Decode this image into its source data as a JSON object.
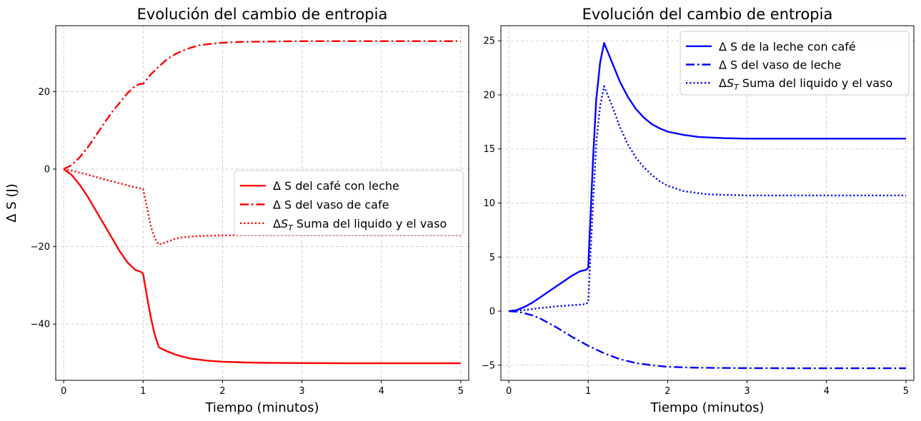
{
  "chart_data": [
    {
      "type": "line",
      "title": "Evolución del cambio de entropia",
      "xlabel": "Tiempo (minutos)",
      "ylabel": "Δ S (J)",
      "xlim": [
        -0.1,
        5.1
      ],
      "ylim": [
        -54.5,
        37.0
      ],
      "xticks": [
        0,
        1,
        2,
        3,
        4,
        5
      ],
      "yticks": [
        -40,
        -20,
        0,
        20
      ],
      "grid": true,
      "legend_position": "center-right",
      "color": "#ff0000",
      "series": [
        {
          "name": "Δ S del café con leche",
          "style": "solid",
          "x": [
            0,
            0.1,
            0.2,
            0.3,
            0.4,
            0.5,
            0.6,
            0.7,
            0.8,
            0.9,
            0.97,
            1.0,
            1.05,
            1.1,
            1.15,
            1.2,
            1.3,
            1.4,
            1.5,
            1.6,
            1.8,
            2.0,
            2.3,
            2.6,
            3.0,
            3.5,
            4.0,
            5.0
          ],
          "y": [
            0,
            -1.5,
            -4.0,
            -7.0,
            -10.5,
            -14.0,
            -17.5,
            -21.0,
            -24.0,
            -26.0,
            -26.5,
            -27.0,
            -33.0,
            -38.5,
            -43.0,
            -46.0,
            -47.0,
            -47.8,
            -48.4,
            -48.9,
            -49.4,
            -49.7,
            -49.9,
            -50.0,
            -50.05,
            -50.1,
            -50.1,
            -50.1
          ]
        },
        {
          "name": "Δ S del vaso de cafe",
          "style": "dashdot",
          "x": [
            0,
            0.1,
            0.2,
            0.3,
            0.4,
            0.5,
            0.6,
            0.7,
            0.8,
            0.9,
            0.97,
            1.0,
            1.1,
            1.2,
            1.3,
            1.4,
            1.5,
            1.6,
            1.7,
            1.8,
            2.0,
            2.2,
            2.5,
            3.0,
            3.5,
            4.0,
            5.0
          ],
          "y": [
            0,
            1.0,
            3.0,
            5.5,
            8.5,
            11.5,
            14.5,
            17.0,
            19.5,
            21.5,
            22.0,
            22.0,
            24.5,
            26.5,
            28.3,
            29.6,
            30.6,
            31.3,
            31.9,
            32.2,
            32.6,
            32.8,
            32.9,
            33.0,
            33.0,
            33.0,
            33.0
          ]
        },
        {
          "name": "ΔS_T  Suma del liquido y el vaso",
          "style": "dotted",
          "x": [
            0,
            0.1,
            0.2,
            0.3,
            0.4,
            0.5,
            0.6,
            0.7,
            0.8,
            0.9,
            0.97,
            1.0,
            1.05,
            1.1,
            1.15,
            1.2,
            1.3,
            1.4,
            1.5,
            1.6,
            1.8,
            2.0,
            2.5,
            3.0,
            4.0,
            5.0
          ],
          "y": [
            0,
            -0.4,
            -0.9,
            -1.4,
            -2.0,
            -2.6,
            -3.1,
            -3.6,
            -4.2,
            -4.7,
            -5.0,
            -5.1,
            -10.0,
            -15.0,
            -18.0,
            -19.5,
            -18.8,
            -18.0,
            -17.6,
            -17.4,
            -17.2,
            -17.1,
            -17.1,
            -17.1,
            -17.1,
            -17.1
          ]
        }
      ]
    },
    {
      "type": "line",
      "title": "Evolución del cambio de entropia",
      "xlabel": "Tiempo (minutos)",
      "ylabel": "",
      "xlim": [
        -0.1,
        5.1
      ],
      "ylim": [
        -6.4,
        26.4
      ],
      "xticks": [
        0,
        1,
        2,
        3,
        4,
        5
      ],
      "yticks": [
        -5,
        0,
        5,
        10,
        15,
        20,
        25
      ],
      "grid": true,
      "legend_position": "top-right",
      "color": "#0000ff",
      "series": [
        {
          "name": "Δ S de la leche con café",
          "style": "solid",
          "x": [
            0,
            0.1,
            0.2,
            0.3,
            0.4,
            0.5,
            0.6,
            0.7,
            0.8,
            0.9,
            0.97,
            1.0,
            1.03,
            1.06,
            1.1,
            1.15,
            1.2,
            1.3,
            1.4,
            1.5,
            1.6,
            1.7,
            1.8,
            1.9,
            2.0,
            2.2,
            2.4,
            2.7,
            3.0,
            3.5,
            4.0,
            5.0
          ],
          "y": [
            0,
            0.1,
            0.4,
            0.8,
            1.3,
            1.8,
            2.3,
            2.8,
            3.3,
            3.7,
            3.8,
            4.0,
            9.0,
            14.0,
            19.5,
            23.0,
            24.8,
            23.0,
            21.2,
            19.8,
            18.7,
            17.9,
            17.3,
            16.9,
            16.6,
            16.3,
            16.1,
            16.0,
            15.95,
            15.95,
            15.95,
            15.95
          ]
        },
        {
          "name": "Δ S del vaso de leche",
          "style": "dashdot",
          "x": [
            0,
            0.1,
            0.2,
            0.3,
            0.4,
            0.5,
            0.6,
            0.7,
            0.8,
            0.9,
            1.0,
            1.2,
            1.4,
            1.6,
            1.8,
            2.0,
            2.3,
            2.6,
            3.0,
            3.5,
            4.0,
            5.0
          ],
          "y": [
            0,
            -0.05,
            -0.2,
            -0.4,
            -0.7,
            -1.1,
            -1.5,
            -1.95,
            -2.4,
            -2.8,
            -3.2,
            -3.9,
            -4.45,
            -4.8,
            -5.0,
            -5.15,
            -5.22,
            -5.25,
            -5.27,
            -5.28,
            -5.28,
            -5.28
          ]
        },
        {
          "name": "ΔS_T  Suma del liquido y el vaso",
          "style": "dotted",
          "x": [
            0,
            0.1,
            0.2,
            0.3,
            0.4,
            0.5,
            0.6,
            0.7,
            0.8,
            0.9,
            0.97,
            1.0,
            1.03,
            1.06,
            1.1,
            1.15,
            1.2,
            1.3,
            1.4,
            1.5,
            1.6,
            1.7,
            1.8,
            1.9,
            2.0,
            2.2,
            2.5,
            3.0,
            4.0,
            5.0
          ],
          "y": [
            0,
            0.05,
            0.1,
            0.2,
            0.3,
            0.35,
            0.45,
            0.5,
            0.55,
            0.6,
            0.65,
            0.8,
            5.5,
            10.0,
            15.5,
            19.0,
            20.8,
            19.0,
            17.0,
            15.4,
            14.2,
            13.3,
            12.6,
            12.0,
            11.6,
            11.1,
            10.8,
            10.7,
            10.7,
            10.7
          ]
        }
      ]
    }
  ]
}
